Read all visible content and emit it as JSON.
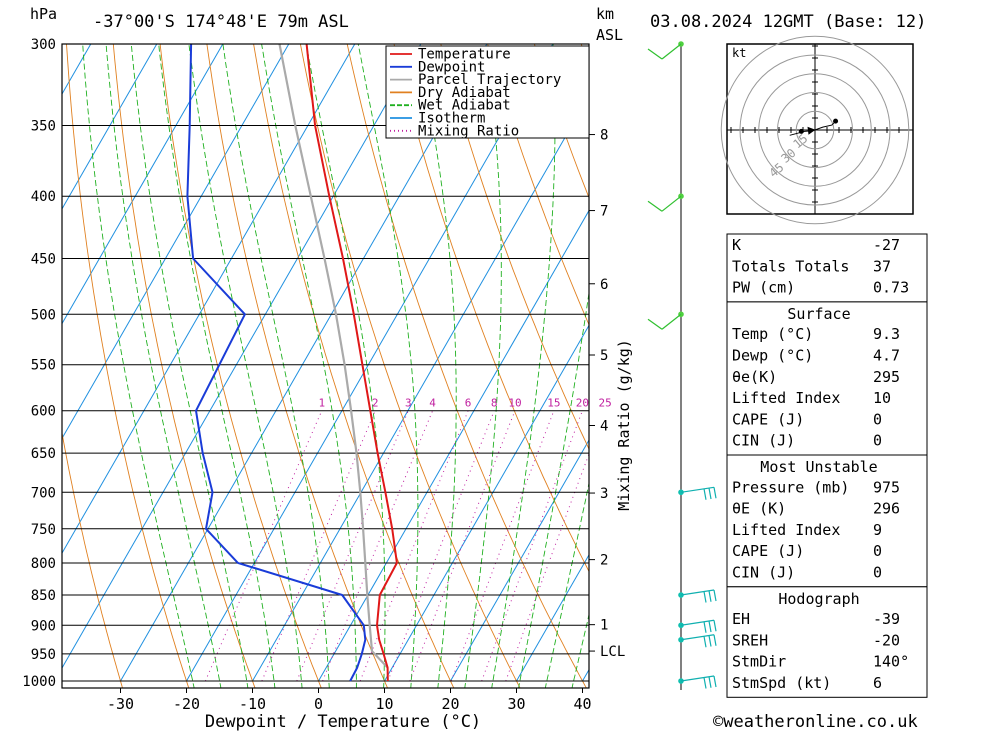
{
  "header": {
    "pressure_unit": "hPa",
    "location": "-37°00'S  174°48'E  79m  ASL",
    "height_unit_line1": "km",
    "height_unit_line2": "ASL",
    "datetime": "03.08.2024  12GMT  (Base: 12)"
  },
  "chart_data": {
    "type": "skew-t",
    "xlabel": "Dewpoint / Temperature (°C)",
    "mixing_ratio_label": "Mixing Ratio (g/kg)",
    "x_ticks": [
      -30,
      -20,
      -10,
      0,
      10,
      20,
      30,
      40
    ],
    "pressure_levels": [
      300,
      350,
      400,
      450,
      500,
      550,
      600,
      650,
      700,
      750,
      800,
      850,
      900,
      950,
      1000
    ],
    "height_ticks_km": [
      {
        "label": "8",
        "p": 356
      },
      {
        "label": "7",
        "p": 411
      },
      {
        "label": "6",
        "p": 472
      },
      {
        "label": "5",
        "p": 540
      },
      {
        "label": "4",
        "p": 617
      },
      {
        "label": "3",
        "p": 701
      },
      {
        "label": "2",
        "p": 795
      },
      {
        "label": "1",
        "p": 899
      },
      {
        "label": "LCL",
        "p": 945
      }
    ],
    "mixing_ratio_values": [
      "1",
      "2",
      "3",
      "4",
      "6",
      "8",
      "10",
      "15",
      "20",
      "25"
    ],
    "legend": [
      {
        "name": "Temperature",
        "color": "#e01818"
      },
      {
        "name": "Dewpoint",
        "color": "#1a3cd8"
      },
      {
        "name": "Parcel Trajectory",
        "color": "#aaaaaa"
      },
      {
        "name": "Dry Adiabat",
        "color": "#e08020"
      },
      {
        "name": "Wet Adiabat",
        "color": "#20b020"
      },
      {
        "name": "Isotherm",
        "color": "#2090e0"
      },
      {
        "name": "Mixing Ratio",
        "color": "#c020a0"
      }
    ],
    "temperature": [
      {
        "p": 1000,
        "t": 10.5
      },
      {
        "p": 975,
        "t": 9.3
      },
      {
        "p": 950,
        "t": 7.5
      },
      {
        "p": 925,
        "t": 5.6
      },
      {
        "p": 900,
        "t": 4.0
      },
      {
        "p": 850,
        "t": 1.8
      },
      {
        "p": 800,
        "t": 1.6
      },
      {
        "p": 750,
        "t": -2.1
      },
      {
        "p": 700,
        "t": -6.3
      },
      {
        "p": 650,
        "t": -10.9
      },
      {
        "p": 600,
        "t": -15.7
      },
      {
        "p": 550,
        "t": -20.9
      },
      {
        "p": 500,
        "t": -26.6
      },
      {
        "p": 450,
        "t": -33.1
      },
      {
        "p": 400,
        "t": -40.6
      },
      {
        "p": 350,
        "t": -48.9
      },
      {
        "p": 300,
        "t": -57.3
      }
    ],
    "dewpoint": [
      {
        "p": 1000,
        "t": 4.8
      },
      {
        "p": 975,
        "t": 4.7
      },
      {
        "p": 950,
        "t": 4.2
      },
      {
        "p": 925,
        "t": 3.5
      },
      {
        "p": 900,
        "t": 2.0
      },
      {
        "p": 850,
        "t": -3.9
      },
      {
        "p": 800,
        "t": -22.5
      },
      {
        "p": 750,
        "t": -30.3
      },
      {
        "p": 700,
        "t": -32.5
      },
      {
        "p": 650,
        "t": -37.4
      },
      {
        "p": 600,
        "t": -42.1
      },
      {
        "p": 500,
        "t": -43.1
      },
      {
        "p": 450,
        "t": -55.8
      },
      {
        "p": 400,
        "t": -62.1
      },
      {
        "p": 350,
        "t": -67.9
      },
      {
        "p": 300,
        "t": -74.8
      }
    ],
    "parcel": [
      {
        "p": 975,
        "t": 9.3
      },
      {
        "p": 945,
        "t": 5.5
      },
      {
        "p": 900,
        "t": 2.9
      },
      {
        "p": 850,
        "t": -0.1
      },
      {
        "p": 800,
        "t": -3.2
      },
      {
        "p": 750,
        "t": -6.5
      },
      {
        "p": 700,
        "t": -10.1
      },
      {
        "p": 650,
        "t": -14.1
      },
      {
        "p": 600,
        "t": -18.6
      },
      {
        "p": 550,
        "t": -23.6
      },
      {
        "p": 500,
        "t": -29.3
      },
      {
        "p": 450,
        "t": -35.9
      },
      {
        "p": 400,
        "t": -43.4
      },
      {
        "p": 350,
        "t": -51.9
      },
      {
        "p": 300,
        "t": -61.4
      }
    ],
    "wind_barb_levels": [
      300,
      400,
      500,
      700,
      850,
      900,
      925,
      1000
    ],
    "hodograph": {
      "unit": "kt",
      "ring_labels": [
        "15",
        "30",
        "45"
      ],
      "points": [
        [
          -1.5,
          -0.5
        ],
        [
          -6.3,
          -0.8
        ],
        [
          -10.1,
          -1.9
        ],
        [
          -14.9,
          -3.1
        ],
        [
          4.6,
          1.7
        ],
        [
          9.9,
          2.9
        ],
        [
          12.1,
          5.2
        ]
      ]
    }
  },
  "indices": {
    "general": [
      {
        "label": "K",
        "value": "-27"
      },
      {
        "label": "Totals Totals",
        "value": "37"
      },
      {
        "label": "PW (cm)",
        "value": "0.73"
      }
    ],
    "surface_title": "Surface",
    "surface": [
      {
        "label": "Temp (°C)",
        "value": "9.3"
      },
      {
        "label": "Dewp (°C)",
        "value": "4.7"
      },
      {
        "label": "θe(K)",
        "value": "295"
      },
      {
        "label": "Lifted Index",
        "value": "10"
      },
      {
        "label": "CAPE (J)",
        "value": "0"
      },
      {
        "label": "CIN (J)",
        "value": "0"
      }
    ],
    "most_unstable_title": "Most Unstable",
    "most_unstable": [
      {
        "label": "Pressure (mb)",
        "value": "975"
      },
      {
        "label": "θE (K)",
        "value": "296"
      },
      {
        "label": "Lifted Index",
        "value": "9"
      },
      {
        "label": "CAPE (J)",
        "value": "0"
      },
      {
        "label": "CIN (J)",
        "value": "0"
      }
    ],
    "hodograph_title": "Hodograph",
    "hodograph": [
      {
        "label": "EH",
        "value": "-39"
      },
      {
        "label": "SREH",
        "value": "-20"
      },
      {
        "label": "StmDir",
        "value": "140°"
      },
      {
        "label": "StmSpd (kt)",
        "value": "6"
      }
    ]
  },
  "footer": {
    "copyright": "©weatheronline.co.uk"
  }
}
